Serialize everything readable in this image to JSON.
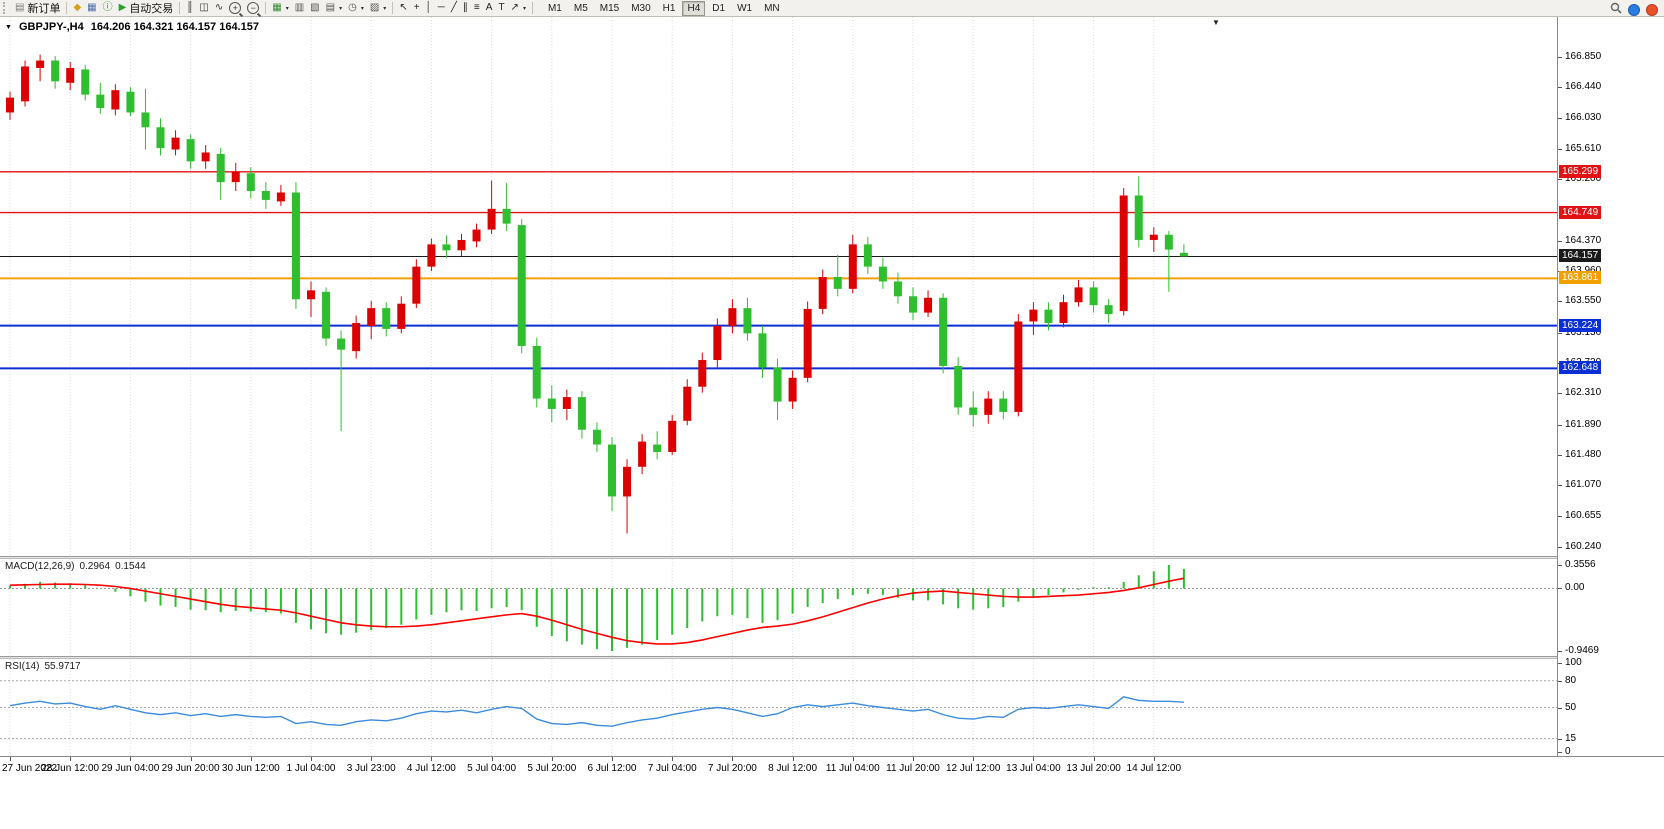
{
  "toolbar": {
    "groups": [
      {
        "name": "orders",
        "buttons": [
          {
            "name": "new-order",
            "glyph": "▤",
            "glyph_color": "#7a7a7a",
            "label": "新订单"
          }
        ]
      },
      {
        "name": "services",
        "buttons": [
          {
            "name": "market",
            "glyph": "◆",
            "glyph_color": "#d4a017"
          },
          {
            "name": "chart-windows",
            "glyph": "▦",
            "glyph_color": "#4a6fa8"
          },
          {
            "name": "info",
            "glyph": "ⓘ",
            "glyph_color": "#2e8b2e"
          },
          {
            "name": "auto-trading",
            "glyph": "▶",
            "glyph_color": "#2e9e2e",
            "label": "自动交易"
          }
        ]
      },
      {
        "name": "chart-modes",
        "buttons": [
          {
            "name": "bar-chart-mode",
            "glyph": "║",
            "glyph_color": "#333333"
          },
          {
            "name": "candlestick-mode",
            "glyph": "◫",
            "glyph_color": "#333333"
          },
          {
            "name": "line-chart-mode",
            "glyph": "∿",
            "glyph_color": "#333333"
          },
          {
            "name": "zoom-in",
            "glyph": "+",
            "glyph_color": "#333333",
            "lens": true
          },
          {
            "name": "zoom-out",
            "glyph": "−",
            "glyph_color": "#333333",
            "lens": true
          }
        ]
      },
      {
        "name": "windows",
        "buttons": [
          {
            "name": "grid",
            "glyph": "▦",
            "glyph_color": "#2e8b2e",
            "caret": true
          },
          {
            "name": "tile-windows",
            "glyph": "▥",
            "glyph_color": "#555555"
          },
          {
            "name": "cascade-windows",
            "glyph": "▧",
            "glyph_color": "#555555"
          },
          {
            "name": "new-chart",
            "glyph": "▤",
            "glyph_color": "#555555",
            "caret": true
          },
          {
            "name": "period",
            "glyph": "◷",
            "glyph_color": "#555555",
            "caret": true
          },
          {
            "name": "template",
            "glyph": "▨",
            "glyph_color": "#555555",
            "caret": true
          }
        ]
      },
      {
        "name": "draw-tools",
        "buttons": [
          {
            "name": "cursor",
            "glyph": "↖",
            "glyph_color": "#222222"
          },
          {
            "name": "crosshair",
            "glyph": "+",
            "glyph_color": "#222222"
          },
          {
            "name": "vertical-line",
            "glyph": "│",
            "glyph_color": "#222222"
          },
          {
            "name": "horizontal-line",
            "glyph": "─",
            "glyph_color": "#222222"
          },
          {
            "name": "trendline",
            "glyph": "╱",
            "glyph_color": "#222222"
          },
          {
            "name": "channel",
            "glyph": "∥",
            "glyph_color": "#222222"
          },
          {
            "name": "fibonacci",
            "glyph": "≡",
            "glyph_color": "#222222"
          },
          {
            "name": "text",
            "glyph": "A",
            "glyph_color": "#222222"
          },
          {
            "name": "text-label",
            "glyph": "T",
            "glyph_color": "#222222"
          },
          {
            "name": "arrows",
            "glyph": "↗",
            "glyph_color": "#222222",
            "caret": true
          }
        ]
      }
    ],
    "timeframes": [
      "M1",
      "M5",
      "M15",
      "M30",
      "H1",
      "H4",
      "D1",
      "W1",
      "MN"
    ],
    "active_timeframe": "H4"
  },
  "chart": {
    "title": "GBPJPY-,H4",
    "ohlc": "164.206 164.321 164.157 164.157",
    "price_axis_labels": [
      "166.850",
      "166.440",
      "166.030",
      "165.610",
      "165.200",
      "164.370",
      "163.960",
      "163.550",
      "163.130",
      "162.720",
      "162.310",
      "161.890",
      "161.480",
      "161.070",
      "160.655",
      "160.240"
    ],
    "time_axis_labels": [
      "27 Jun 2022",
      "28 Jun 12:00",
      "29 Jun 04:00",
      "29 Jun 20:00",
      "30 Jun 12:00",
      "1 Jul 04:00",
      "3 Jul 23:00",
      "4 Jul 12:00",
      "5 Jul 04:00",
      "5 Jul 20:00",
      "6 Jul 12:00",
      "7 Jul 04:00",
      "7 Jul 20:00",
      "8 Jul 12:00",
      "11 Jul 04:00",
      "11 Jul 20:00",
      "12 Jul 12:00",
      "13 Jul 04:00",
      "13 Jul 20:00",
      "14 Jul 12:00"
    ],
    "horizontal_lines": [
      {
        "label": "165.299",
        "price": 165.299,
        "color": "#e01212",
        "width": 1.4
      },
      {
        "label": "164.749",
        "price": 164.749,
        "color": "#e01212",
        "width": 1.4
      },
      {
        "label": "164.157",
        "price": 164.157,
        "color": "#1a1a1a",
        "width": 1
      },
      {
        "label": "163.861",
        "price": 163.861,
        "color": "#f0a000",
        "width": 2
      },
      {
        "label": "163.224",
        "price": 163.224,
        "color": "#0a2fd4",
        "width": 2
      },
      {
        "label": "162.648",
        "price": 162.648,
        "color": "#0a2fd4",
        "width": 2
      }
    ],
    "colors": {
      "bull": "#dd0000",
      "bear": "#2fbe2f",
      "macd_histogram": "#2fbe2f",
      "macd_signal": "#ff0000",
      "rsi_line": "#3c8cdc",
      "grid": "#dcdcdc"
    }
  },
  "macd": {
    "name": "MACD(12,26,9)",
    "value_main": "0.2964",
    "value_signal": "0.1544",
    "axis_labels": [
      "0.3556",
      "0.00",
      "-0.9469"
    ]
  },
  "rsi": {
    "name": "RSI(14)",
    "value": "55.9717",
    "axis_labels": [
      "100",
      "80",
      "50",
      "15",
      "0"
    ],
    "levels": [
      80,
      50,
      15
    ]
  },
  "chart_data": {
    "type": "candlestick+indicators",
    "symbol": "GBPJPY-",
    "timeframe": "H4",
    "current_ohlc": {
      "open": 164.206,
      "high": 164.321,
      "low": 164.157,
      "close": 164.157
    },
    "candles": [
      [
        166.1,
        166.38,
        166.0,
        166.3
      ],
      [
        166.25,
        166.8,
        166.18,
        166.72
      ],
      [
        166.7,
        166.88,
        166.52,
        166.8
      ],
      [
        166.8,
        166.86,
        166.42,
        166.52
      ],
      [
        166.5,
        166.78,
        166.4,
        166.7
      ],
      [
        166.68,
        166.74,
        166.26,
        166.34
      ],
      [
        166.34,
        166.5,
        166.08,
        166.16
      ],
      [
        166.14,
        166.48,
        166.06,
        166.4
      ],
      [
        166.38,
        166.44,
        166.05,
        166.1
      ],
      [
        166.1,
        166.42,
        165.6,
        165.9
      ],
      [
        165.9,
        166.02,
        165.52,
        165.62
      ],
      [
        165.6,
        165.86,
        165.52,
        165.76
      ],
      [
        165.74,
        165.8,
        165.34,
        165.44
      ],
      [
        165.44,
        165.66,
        165.34,
        165.56
      ],
      [
        165.54,
        165.62,
        164.92,
        165.16
      ],
      [
        165.16,
        165.42,
        165.04,
        165.3
      ],
      [
        165.28,
        165.36,
        164.94,
        165.04
      ],
      [
        165.04,
        165.16,
        164.8,
        164.92
      ],
      [
        164.9,
        165.12,
        164.84,
        165.02
      ],
      [
        165.02,
        165.16,
        163.45,
        163.58
      ],
      [
        163.58,
        163.82,
        163.34,
        163.7
      ],
      [
        163.68,
        163.74,
        162.95,
        163.05
      ],
      [
        163.05,
        163.16,
        161.8,
        162.9
      ],
      [
        162.88,
        163.36,
        162.78,
        163.26
      ],
      [
        163.22,
        163.56,
        163.04,
        163.46
      ],
      [
        163.46,
        163.54,
        163.08,
        163.18
      ],
      [
        163.18,
        163.62,
        163.12,
        163.52
      ],
      [
        163.52,
        164.12,
        163.46,
        164.02
      ],
      [
        164.02,
        164.4,
        163.96,
        164.32
      ],
      [
        164.32,
        164.44,
        164.14,
        164.24
      ],
      [
        164.24,
        164.46,
        164.16,
        164.38
      ],
      [
        164.36,
        164.6,
        164.28,
        164.52
      ],
      [
        164.52,
        165.18,
        164.46,
        164.8
      ],
      [
        164.8,
        165.15,
        164.5,
        164.6
      ],
      [
        164.58,
        164.66,
        162.85,
        162.95
      ],
      [
        162.95,
        163.06,
        162.12,
        162.24
      ],
      [
        162.24,
        162.42,
        161.92,
        162.1
      ],
      [
        162.1,
        162.36,
        161.95,
        162.26
      ],
      [
        162.26,
        162.34,
        161.7,
        161.82
      ],
      [
        161.82,
        161.92,
        161.52,
        161.62
      ],
      [
        161.62,
        161.72,
        160.72,
        160.92
      ],
      [
        160.92,
        161.42,
        160.42,
        161.32
      ],
      [
        161.32,
        161.76,
        161.22,
        161.66
      ],
      [
        161.62,
        161.8,
        161.42,
        161.52
      ],
      [
        161.52,
        162.02,
        161.48,
        161.94
      ],
      [
        161.94,
        162.5,
        161.88,
        162.4
      ],
      [
        162.4,
        162.86,
        162.32,
        162.76
      ],
      [
        162.76,
        163.32,
        162.66,
        163.22
      ],
      [
        163.22,
        163.58,
        163.12,
        163.46
      ],
      [
        163.46,
        163.6,
        163.02,
        163.12
      ],
      [
        163.12,
        163.22,
        162.52,
        162.66
      ],
      [
        162.66,
        162.78,
        161.95,
        162.2
      ],
      [
        162.2,
        162.62,
        162.1,
        162.52
      ],
      [
        162.52,
        163.55,
        162.46,
        163.45
      ],
      [
        163.45,
        163.98,
        163.38,
        163.88
      ],
      [
        163.88,
        164.18,
        163.62,
        163.72
      ],
      [
        163.72,
        164.45,
        163.66,
        164.32
      ],
      [
        164.32,
        164.42,
        163.92,
        164.02
      ],
      [
        164.02,
        164.14,
        163.72,
        163.82
      ],
      [
        163.82,
        163.94,
        163.52,
        163.62
      ],
      [
        163.62,
        163.74,
        163.3,
        163.4
      ],
      [
        163.4,
        163.7,
        163.34,
        163.6
      ],
      [
        163.6,
        163.66,
        162.58,
        162.68
      ],
      [
        162.68,
        162.8,
        162.02,
        162.12
      ],
      [
        162.12,
        162.34,
        161.86,
        162.02
      ],
      [
        162.02,
        162.34,
        161.9,
        162.24
      ],
      [
        162.24,
        162.34,
        161.96,
        162.06
      ],
      [
        162.06,
        163.38,
        162.0,
        163.28
      ],
      [
        163.28,
        163.54,
        163.1,
        163.44
      ],
      [
        163.44,
        163.54,
        163.16,
        163.26
      ],
      [
        163.26,
        163.64,
        163.2,
        163.54
      ],
      [
        163.54,
        163.84,
        163.48,
        163.74
      ],
      [
        163.74,
        163.82,
        163.4,
        163.5
      ],
      [
        163.5,
        163.58,
        163.26,
        163.38
      ],
      [
        163.42,
        165.08,
        163.36,
        164.98
      ],
      [
        164.98,
        165.24,
        164.28,
        164.38
      ],
      [
        164.38,
        164.55,
        164.22,
        164.45
      ],
      [
        164.45,
        164.5,
        163.68,
        164.25
      ],
      [
        164.206,
        164.321,
        164.157,
        164.157
      ]
    ],
    "macd_histogram": [
      0.04,
      0.07,
      0.1,
      0.09,
      0.08,
      0.05,
      0.0,
      -0.05,
      -0.12,
      -0.2,
      -0.26,
      -0.28,
      -0.32,
      -0.33,
      -0.36,
      -0.34,
      -0.35,
      -0.36,
      -0.38,
      -0.52,
      -0.62,
      -0.68,
      -0.7,
      -0.67,
      -0.63,
      -0.6,
      -0.55,
      -0.47,
      -0.4,
      -0.36,
      -0.33,
      -0.34,
      -0.3,
      -0.28,
      -0.33,
      -0.58,
      -0.72,
      -0.8,
      -0.85,
      -0.92,
      -0.9469,
      -0.9,
      -0.85,
      -0.78,
      -0.7,
      -0.6,
      -0.5,
      -0.42,
      -0.4,
      -0.45,
      -0.52,
      -0.48,
      -0.38,
      -0.28,
      -0.22,
      -0.16,
      -0.1,
      -0.08,
      -0.1,
      -0.14,
      -0.18,
      -0.18,
      -0.24,
      -0.3,
      -0.32,
      -0.3,
      -0.28,
      -0.2,
      -0.14,
      -0.1,
      -0.06,
      -0.02,
      0.02,
      0.02,
      0.1,
      0.2,
      0.26,
      0.3556,
      0.2964
    ],
    "macd_signal": [
      0.05,
      0.055,
      0.06,
      0.065,
      0.065,
      0.06,
      0.05,
      0.03,
      0.0,
      -0.04,
      -0.08,
      -0.12,
      -0.16,
      -0.2,
      -0.24,
      -0.27,
      -0.29,
      -0.31,
      -0.33,
      -0.37,
      -0.42,
      -0.47,
      -0.52,
      -0.55,
      -0.57,
      -0.58,
      -0.58,
      -0.57,
      -0.55,
      -0.52,
      -0.49,
      -0.46,
      -0.43,
      -0.4,
      -0.38,
      -0.42,
      -0.48,
      -0.55,
      -0.62,
      -0.68,
      -0.74,
      -0.79,
      -0.82,
      -0.84,
      -0.84,
      -0.82,
      -0.78,
      -0.73,
      -0.68,
      -0.63,
      -0.59,
      -0.57,
      -0.54,
      -0.49,
      -0.43,
      -0.36,
      -0.29,
      -0.22,
      -0.16,
      -0.11,
      -0.07,
      -0.05,
      -0.04,
      -0.06,
      -0.08,
      -0.1,
      -0.12,
      -0.13,
      -0.13,
      -0.12,
      -0.11,
      -0.1,
      -0.08,
      -0.06,
      -0.03,
      0.01,
      0.06,
      0.11,
      0.1544
    ],
    "rsi": [
      52,
      55,
      57,
      54,
      55,
      51,
      48,
      52,
      48,
      44,
      42,
      44,
      41,
      43,
      40,
      42,
      40,
      39,
      40,
      32,
      34,
      31,
      30,
      34,
      36,
      35,
      38,
      43,
      46,
      45,
      47,
      44,
      48,
      51,
      49,
      37,
      32,
      31,
      33,
      30,
      29,
      33,
      36,
      38,
      42,
      45,
      48,
      50,
      48,
      44,
      40,
      43,
      50,
      53,
      51,
      53,
      55,
      52,
      50,
      48,
      46,
      48,
      42,
      38,
      37,
      40,
      39,
      48,
      50,
      49,
      51,
      53,
      51,
      49,
      62,
      58,
      57,
      57,
      55.97
    ]
  }
}
